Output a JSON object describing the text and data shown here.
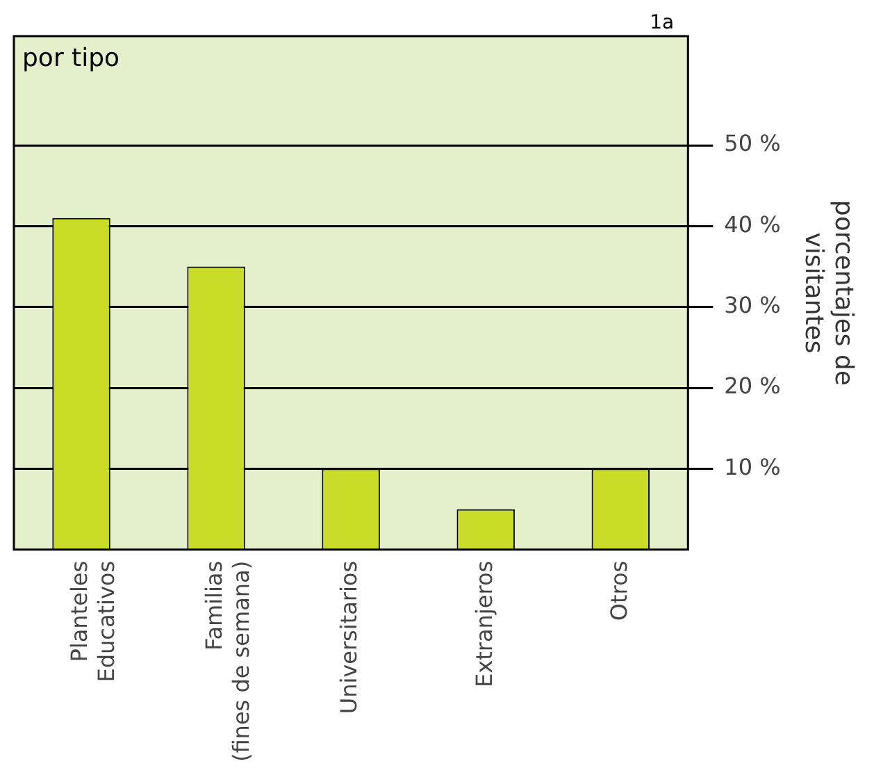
{
  "chart_data": {
    "type": "bar",
    "title": "por tipo",
    "ylabel": "porcentajes de visitantes",
    "categories": [
      "Planteles Educativos",
      "Familias (fines de semana)",
      "Universitarios",
      "Extranjeros",
      "Otros"
    ],
    "values": [
      41,
      35,
      10,
      5,
      10
    ],
    "color": "#c8dc28",
    "ylim": [
      0,
      63.5
    ],
    "yticks": [
      {
        "value": 10,
        "label": "10 %"
      },
      {
        "value": 20,
        "label": "20 %"
      },
      {
        "value": 30,
        "label": "30 %"
      },
      {
        "value": 40,
        "label": "40 %"
      },
      {
        "value": 50,
        "label": "50 %"
      }
    ],
    "grid": "y",
    "annotations": [
      "1a"
    ]
  }
}
